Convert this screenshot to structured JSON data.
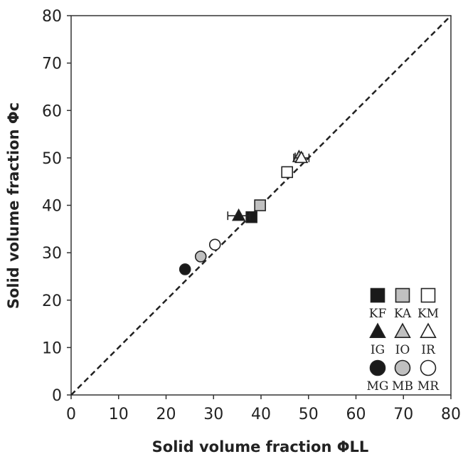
{
  "chart_data": {
    "type": "scatter",
    "title": "",
    "xlabel": "Solid volume fraction ΦLL",
    "ylabel": "Solid volume fraction Φc",
    "xlim": [
      0,
      80
    ],
    "ylim": [
      0,
      80
    ],
    "xticks": [
      "0",
      "10",
      "20",
      "30",
      "40",
      "50",
      "60",
      "70",
      "80"
    ],
    "yticks": [
      "0",
      "10",
      "20",
      "30",
      "40",
      "50",
      "60",
      "70",
      "80"
    ],
    "grid": false,
    "reference_line": {
      "style": "dashed",
      "from": [
        0,
        0
      ],
      "to": [
        80,
        80
      ]
    },
    "legend_position": "bottom-right",
    "series": [
      {
        "name": "KF",
        "marker": "square",
        "fill": "#1a1a1a",
        "points": [
          {
            "x": 38.0,
            "y": 37.5,
            "xerr": 0
          }
        ]
      },
      {
        "name": "KA",
        "marker": "square",
        "fill": "#c0c0c0",
        "points": [
          {
            "x": 39.8,
            "y": 40.0,
            "xerr": 0
          }
        ]
      },
      {
        "name": "KM",
        "marker": "square",
        "fill": "#ffffff",
        "points": [
          {
            "x": 45.5,
            "y": 47.0,
            "xerr": 0
          }
        ]
      },
      {
        "name": "IG",
        "marker": "triangle",
        "fill": "#1a1a1a",
        "points": [
          {
            "x": 35.3,
            "y": 37.8,
            "xerr": 2.3
          }
        ]
      },
      {
        "name": "IO",
        "marker": "triangle",
        "fill": "#c0c0c0",
        "points": [
          {
            "x": 48.0,
            "y": 50.2,
            "xerr": 0.8
          }
        ]
      },
      {
        "name": "IR",
        "marker": "triangle",
        "fill": "#ffffff",
        "points": [
          {
            "x": 48.5,
            "y": 50.0,
            "xerr": 1.6
          }
        ]
      },
      {
        "name": "MG",
        "marker": "circle",
        "fill": "#1a1a1a",
        "points": [
          {
            "x": 24.0,
            "y": 26.5,
            "xerr": 0.7
          }
        ]
      },
      {
        "name": "MB",
        "marker": "circle",
        "fill": "#c0c0c0",
        "points": [
          {
            "x": 27.3,
            "y": 29.2,
            "xerr": 0
          }
        ]
      },
      {
        "name": "MR",
        "marker": "circle",
        "fill": "#ffffff",
        "points": [
          {
            "x": 30.3,
            "y": 31.7,
            "xerr": 0
          }
        ]
      }
    ]
  }
}
